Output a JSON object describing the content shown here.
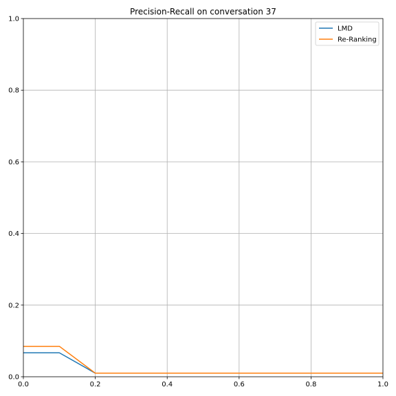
{
  "chart_data": {
    "type": "line",
    "title": "Precision-Recall on conversation 37",
    "xlabel": "",
    "ylabel": "",
    "xlim": [
      0.0,
      1.0
    ],
    "ylim": [
      0.0,
      1.0
    ],
    "xticks": [
      "0.0",
      "0.2",
      "0.4",
      "0.6",
      "0.8",
      "1.0"
    ],
    "yticks": [
      "0.0",
      "0.2",
      "0.4",
      "0.6",
      "0.8",
      "1.0"
    ],
    "grid": true,
    "legend_position": "top-right",
    "series": [
      {
        "name": "LMD",
        "color": "#1f77b4",
        "x": [
          0.0,
          0.1,
          0.2,
          0.3,
          0.4,
          0.5,
          0.6,
          0.7,
          0.8,
          0.9,
          1.0
        ],
        "y": [
          0.067,
          0.067,
          0.01,
          0.01,
          0.01,
          0.01,
          0.01,
          0.01,
          0.01,
          0.01,
          0.01
        ]
      },
      {
        "name": "Re-Ranking",
        "color": "#ff7f0e",
        "x": [
          0.0,
          0.1,
          0.2,
          0.3,
          0.4,
          0.5,
          0.6,
          0.7,
          0.8,
          0.9,
          1.0
        ],
        "y": [
          0.085,
          0.085,
          0.01,
          0.01,
          0.01,
          0.01,
          0.01,
          0.01,
          0.01,
          0.01,
          0.01
        ]
      }
    ]
  }
}
